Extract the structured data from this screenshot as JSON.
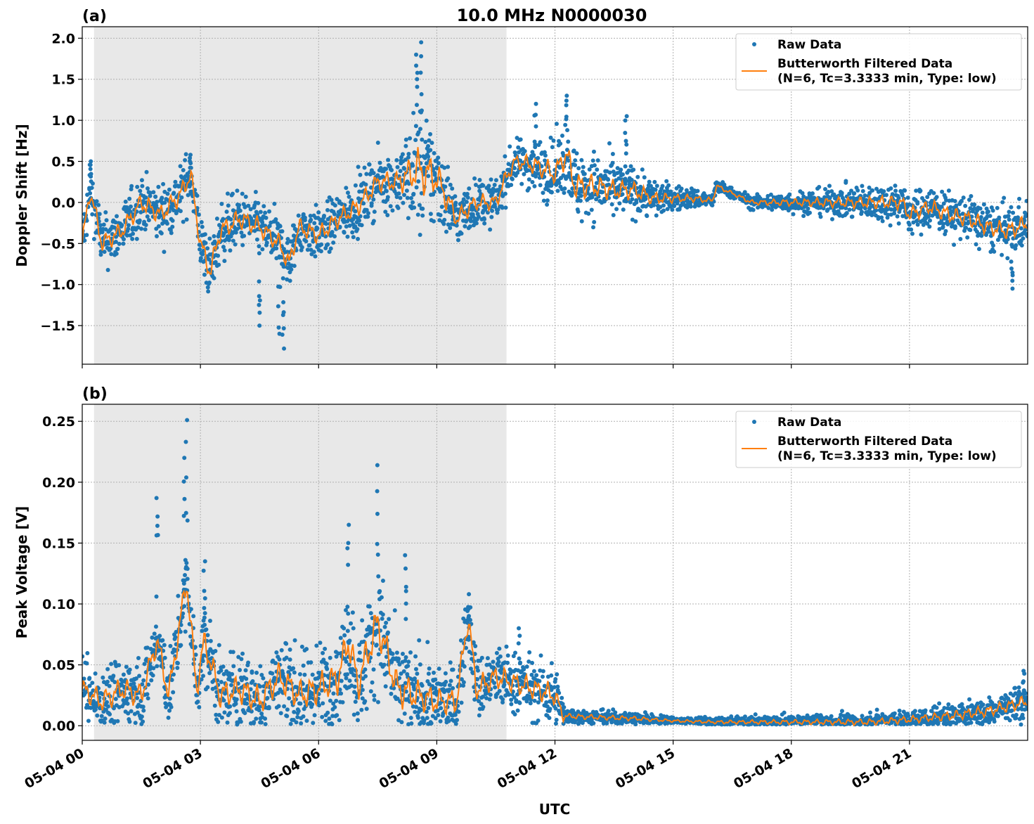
{
  "title": "10.0 MHz N0000030",
  "xlabel": "UTC",
  "x_tick_labels": [
    "05-04 00",
    "05-04 03",
    "05-04 06",
    "05-04 09",
    "05-04 12",
    "05-04 15",
    "05-04 18",
    "05-04 21"
  ],
  "colors": {
    "raw": "#1f77b4",
    "filtered": "#ff7f0e",
    "shade": "#e8e8e8",
    "grid": "#b0b0b0"
  },
  "chart_data": [
    {
      "type": "scatter+line",
      "panel_label": "(a)",
      "ylabel": "Doppler Shift [Hz]",
      "x_unit": "hours UTC on 05-04",
      "xlim": [
        0,
        24
      ],
      "ylim": [
        -1.97,
        2.14
      ],
      "y_ticks": [
        "2.0",
        "1.5",
        "1.0",
        "0.5",
        "0.0",
        "−0.5",
        "−1.0",
        "−1.5"
      ],
      "y_tick_values": [
        2.0,
        1.5,
        1.0,
        0.5,
        0.0,
        -0.5,
        -1.0,
        -1.5
      ],
      "grid": true,
      "shaded_interval_hours": [
        0.3,
        10.77
      ],
      "legend": {
        "position": "top-right",
        "entries": [
          "Raw Data",
          "Butterworth Filtered Data",
          "(N=6, Tc=3.3333 min, Type: low)"
        ]
      },
      "filtered": {
        "x": [
          0,
          0.2,
          0.5,
          1,
          1.5,
          2,
          2.5,
          2.75,
          3,
          3.25,
          3.5,
          4,
          4.5,
          5,
          5.25,
          5.5,
          6,
          6.5,
          7,
          7.5,
          8,
          8.5,
          9,
          9.5,
          10,
          10.5,
          10.75,
          11,
          11.5,
          12,
          12.3,
          12.5,
          13,
          13.5,
          14,
          14.5,
          15,
          15.5,
          16,
          16.1,
          17,
          18,
          19,
          20,
          20.8,
          21,
          21.5,
          22,
          22.5,
          23,
          23.5,
          24
        ],
        "y": [
          -0.5,
          0.15,
          -0.5,
          -0.35,
          0.0,
          -0.15,
          0.1,
          0.35,
          -0.5,
          -0.85,
          -0.35,
          -0.2,
          -0.3,
          -0.5,
          -0.75,
          -0.3,
          -0.4,
          -0.2,
          -0.05,
          0.25,
          0.25,
          0.4,
          0.3,
          -0.2,
          0.0,
          0.0,
          0.3,
          0.5,
          0.45,
          0.35,
          0.6,
          0.2,
          0.2,
          0.15,
          0.15,
          0.05,
          0.05,
          0.05,
          0.02,
          0.2,
          0.0,
          0.0,
          0.0,
          0.0,
          0.0,
          -0.15,
          -0.05,
          -0.15,
          -0.2,
          -0.3,
          -0.35,
          -0.25
        ]
      },
      "raw_spread": {
        "x": [
          0,
          3,
          6,
          8,
          8.6,
          9.5,
          11,
          12.5,
          14,
          15,
          16.5,
          21,
          24
        ],
        "halfwidth": [
          0.3,
          0.35,
          0.3,
          0.35,
          0.8,
          0.3,
          0.25,
          0.45,
          0.3,
          0.15,
          0.06,
          0.25,
          0.3
        ]
      },
      "raw_peaks": [
        [
          8.6,
          1.95
        ],
        [
          8.5,
          1.8
        ],
        [
          5.1,
          -1.78
        ],
        [
          5.0,
          -1.6
        ],
        [
          12.3,
          1.3
        ],
        [
          11.5,
          1.2
        ],
        [
          13.8,
          1.05
        ],
        [
          23.6,
          -1.05
        ],
        [
          4.5,
          -1.5
        ],
        [
          0.2,
          0.5
        ],
        [
          2.75,
          0.58
        ]
      ]
    },
    {
      "type": "scatter+line",
      "panel_label": "(b)",
      "ylabel": "Peak Voltage [V]",
      "x_unit": "hours UTC on 05-04",
      "xlim": [
        0,
        24
      ],
      "ylim": [
        -0.012,
        0.264
      ],
      "y_ticks": [
        "0.25",
        "0.20",
        "0.15",
        "0.10",
        "0.05",
        "0.00"
      ],
      "y_tick_values": [
        0.25,
        0.2,
        0.15,
        0.1,
        0.05,
        0.0
      ],
      "grid": true,
      "shaded_interval_hours": [
        0.3,
        10.77
      ],
      "legend": {
        "position": "top-right",
        "entries": [
          "Raw Data",
          "Butterworth Filtered Data",
          "(N=6, Tc=3.3333 min, Type: low)"
        ]
      },
      "filtered": {
        "x": [
          0,
          0.5,
          1,
          1.5,
          1.9,
          2.2,
          2.65,
          2.9,
          3.1,
          3.5,
          4,
          4.5,
          5,
          5.5,
          6,
          6.5,
          6.75,
          7,
          7.5,
          8,
          8.5,
          9,
          9.5,
          9.8,
          10,
          10.5,
          11,
          11.5,
          12,
          12.2,
          13,
          14,
          15,
          16,
          18,
          20,
          21,
          22,
          23,
          24
        ],
        "y": [
          0.03,
          0.02,
          0.03,
          0.025,
          0.07,
          0.025,
          0.12,
          0.03,
          0.07,
          0.025,
          0.03,
          0.02,
          0.04,
          0.025,
          0.03,
          0.04,
          0.07,
          0.035,
          0.085,
          0.03,
          0.025,
          0.02,
          0.02,
          0.09,
          0.03,
          0.04,
          0.035,
          0.03,
          0.025,
          0.008,
          0.007,
          0.006,
          0.004,
          0.003,
          0.003,
          0.003,
          0.005,
          0.008,
          0.012,
          0.02
        ]
      },
      "raw_spread": {
        "x": [
          0,
          3,
          6,
          7.5,
          9,
          11,
          12,
          12.3,
          14,
          15,
          21,
          24
        ],
        "halfwidth": [
          0.025,
          0.03,
          0.035,
          0.045,
          0.03,
          0.025,
          0.025,
          0.006,
          0.005,
          0.003,
          0.008,
          0.015
        ]
      },
      "raw_peaks": [
        [
          1.9,
          0.187
        ],
        [
          2.65,
          0.251
        ],
        [
          2.6,
          0.22
        ],
        [
          7.5,
          0.214
        ],
        [
          6.75,
          0.165
        ],
        [
          3.1,
          0.135
        ],
        [
          8.2,
          0.14
        ],
        [
          9.8,
          0.108
        ],
        [
          11.1,
          0.08
        ],
        [
          23.9,
          0.045
        ]
      ]
    }
  ]
}
